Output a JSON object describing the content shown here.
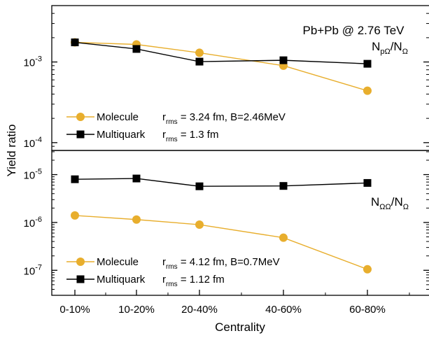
{
  "chart_data": [
    {
      "type": "line",
      "panel": "top",
      "title": "Pb+Pb @ 2.76 TeV",
      "ratio_label": {
        "main": "N",
        "sub": "pΩ",
        "tail": "/N",
        "tail_sub": "Ω"
      },
      "categories": [
        "0-10%",
        "10-20%",
        "20-40%",
        "40-60%",
        "60-80%"
      ],
      "y_scale": "log",
      "ylim": [
        8e-05,
        0.005
      ],
      "yticks": [
        {
          "value": 0.001,
          "base": "10",
          "exp": "-3"
        },
        {
          "value": 0.0001,
          "base": "10",
          "exp": "-4"
        }
      ],
      "series": [
        {
          "name": "Molecule",
          "color": "#E8AE2D",
          "marker": "circle",
          "values": [
            0.00175,
            0.00165,
            0.0013,
            0.0009,
            0.00044
          ],
          "legend_desc": {
            "r": "r",
            "sub": "rms",
            "text": " = 3.24 fm, B=2.46MeV"
          }
        },
        {
          "name": "Multiquark",
          "color": "#000000",
          "marker": "square",
          "values": [
            0.00175,
            0.00145,
            0.00101,
            0.00105,
            0.00095
          ],
          "legend_desc": {
            "r": "r",
            "sub": "rms",
            "text": " = 1.3 fm"
          }
        }
      ]
    },
    {
      "type": "line",
      "panel": "bottom",
      "ratio_label": {
        "main": "N",
        "sub": "ΩΩ",
        "tail": "/N",
        "tail_sub": "Ω"
      },
      "categories": [
        "0-10%",
        "10-20%",
        "20-40%",
        "40-60%",
        "60-80%"
      ],
      "y_scale": "log",
      "ylim": [
        3e-08,
        3.2e-05
      ],
      "yticks": [
        {
          "value": 1e-05,
          "base": "10",
          "exp": "-5"
        },
        {
          "value": 1e-06,
          "base": "10",
          "exp": "-6"
        },
        {
          "value": 1e-07,
          "base": "10",
          "exp": "-7"
        }
      ],
      "series": [
        {
          "name": "Molecule",
          "color": "#E8AE2D",
          "marker": "circle",
          "values": [
            1.4e-06,
            1.15e-06,
            9e-07,
            4.8e-07,
            1.05e-07
          ],
          "legend_desc": {
            "r": "r",
            "sub": "rms",
            "text": " = 4.12 fm, B=0.7MeV"
          }
        },
        {
          "name": "Multiquark",
          "color": "#000000",
          "marker": "square",
          "values": [
            8e-06,
            8.3e-06,
            5.7e-06,
            5.8e-06,
            6.7e-06
          ],
          "legend_desc": {
            "r": "r",
            "sub": "rms",
            "text": " = 1.12 fm"
          }
        }
      ]
    }
  ],
  "xlabel": "Centrality",
  "ylabel": "Yield ratio"
}
